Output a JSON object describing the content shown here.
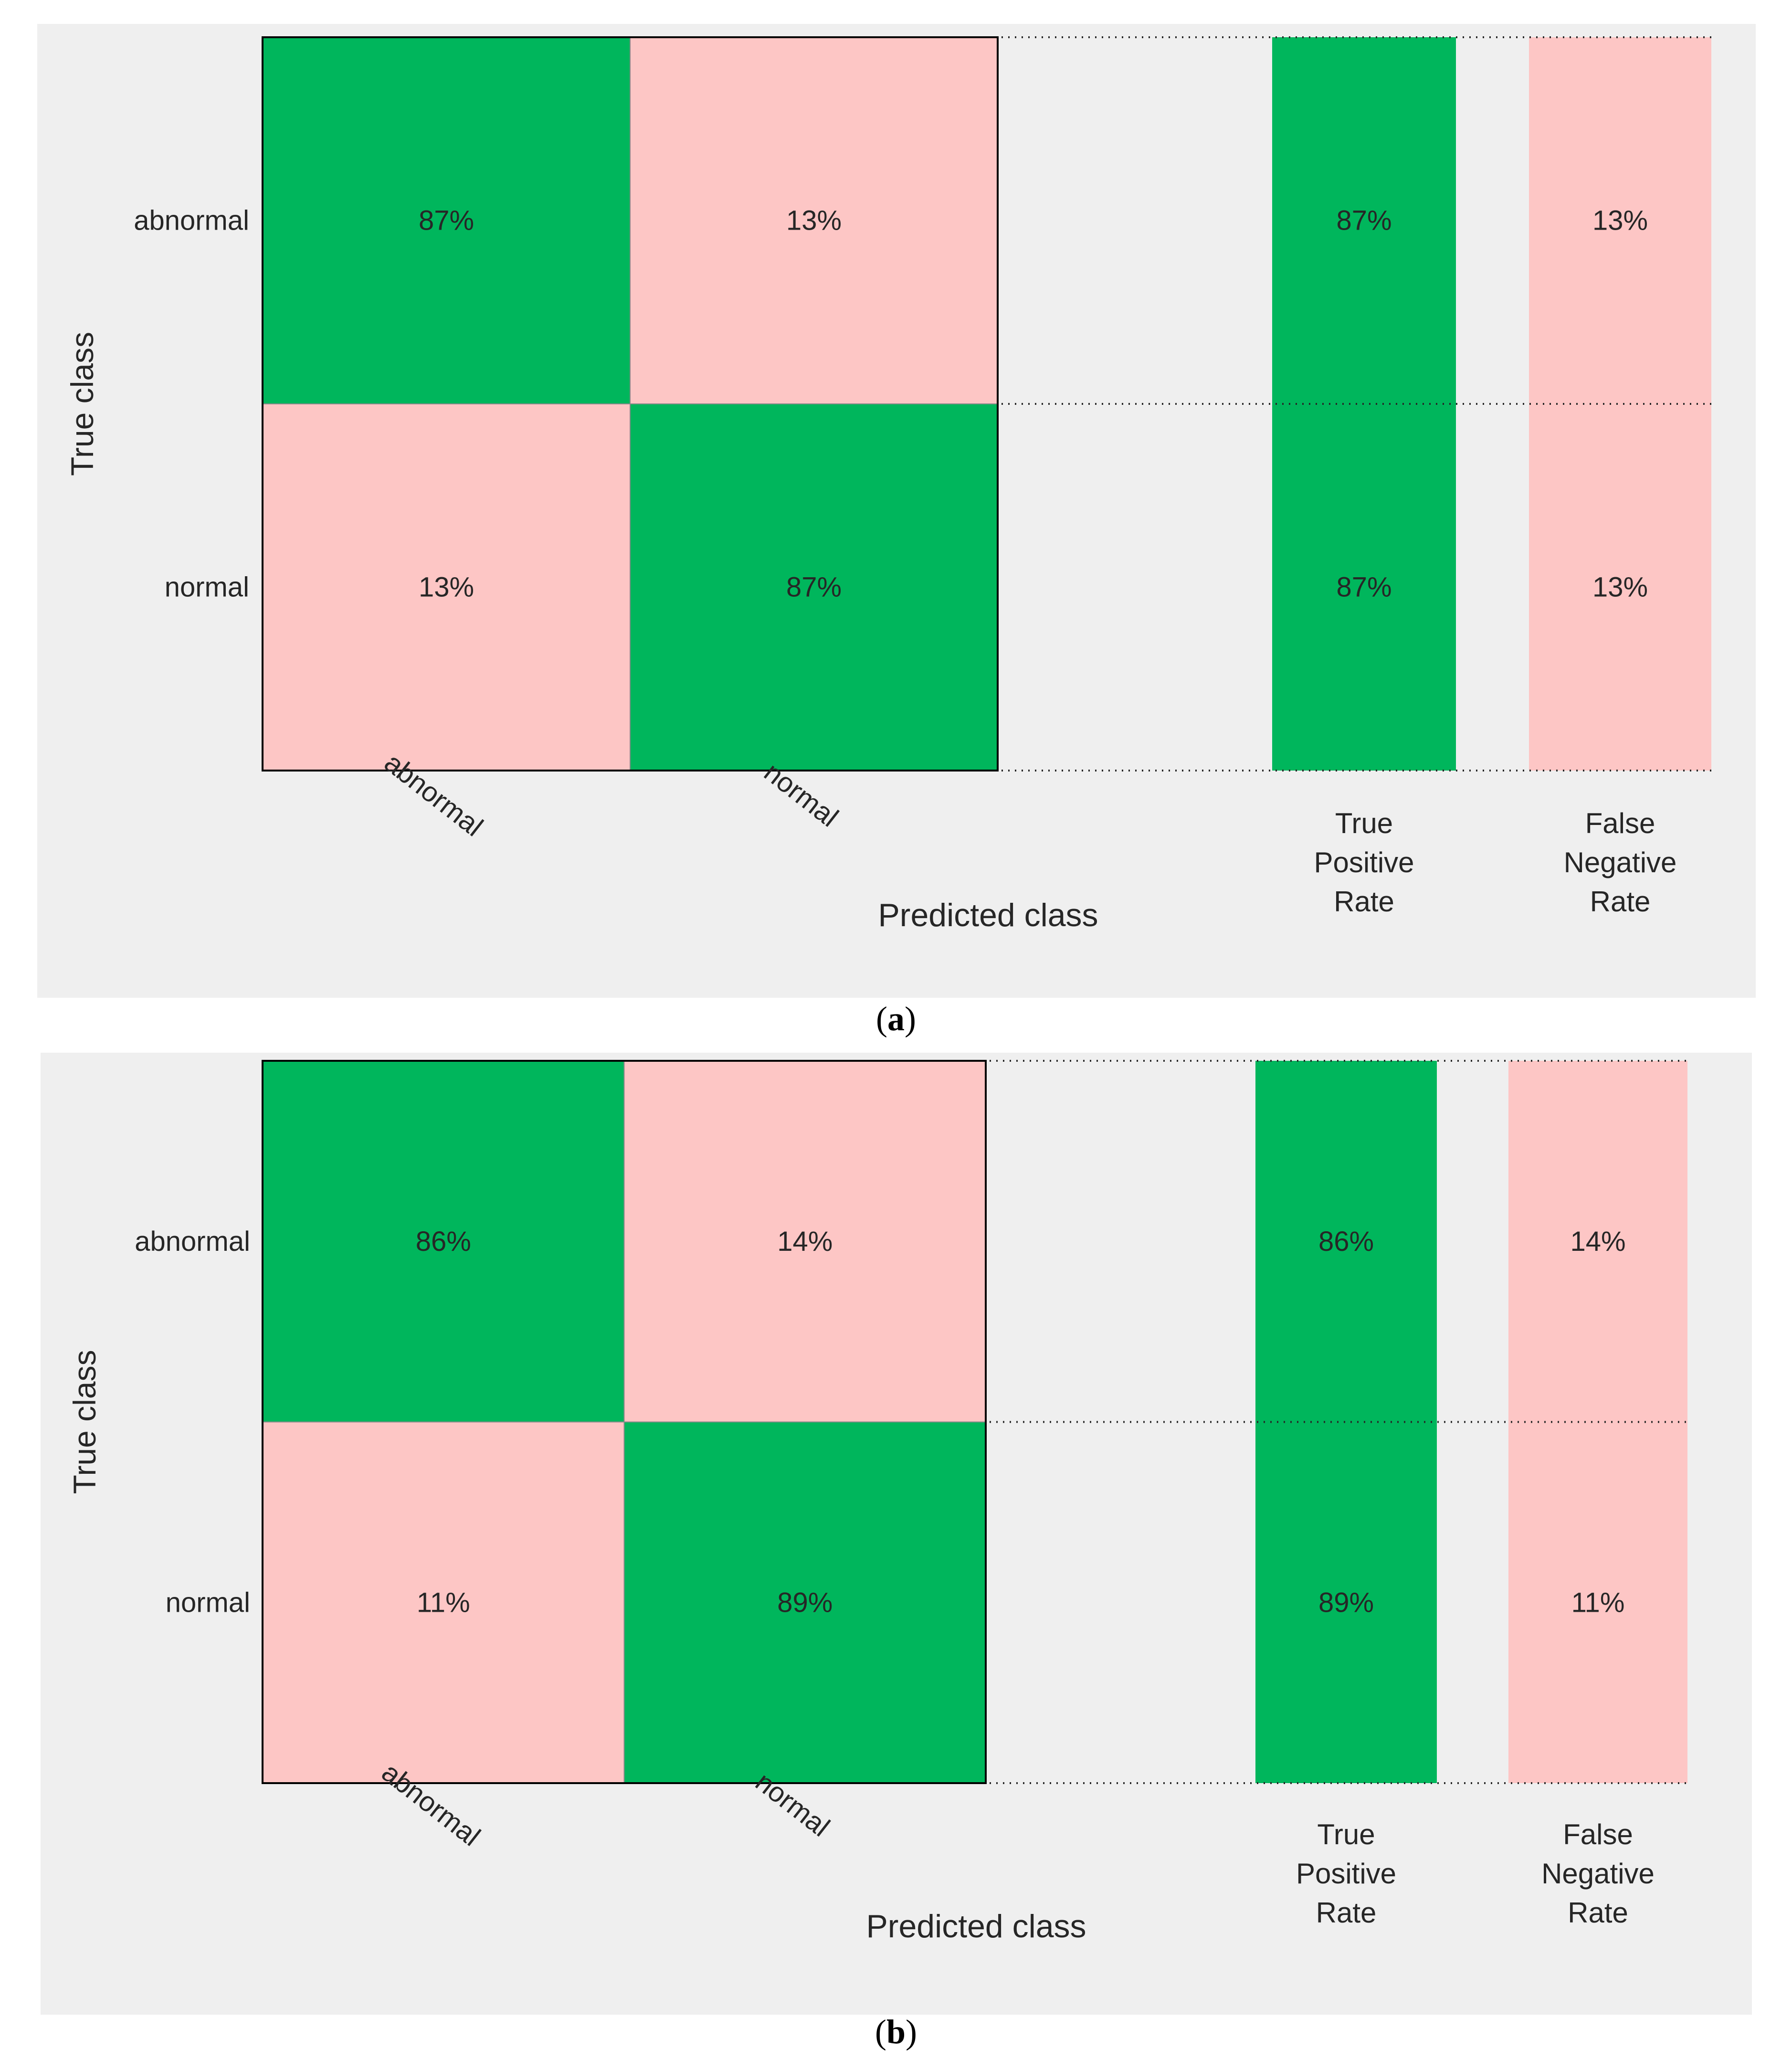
{
  "colors": {
    "panel_bg": "#efefef",
    "correct": "#00b65c",
    "incorrect": "#fdc6c5",
    "text": "#262626",
    "grid": "#262626"
  },
  "chart_data": [
    {
      "type": "heatmap",
      "caption": "a",
      "ylabel": "True class",
      "xlabel": "Predicted class",
      "classes": [
        "abnormal",
        "normal"
      ],
      "matrix": [
        [
          87,
          13
        ],
        [
          13,
          87
        ]
      ],
      "summary_columns": [
        {
          "label": [
            "True",
            "Positive",
            "Rate"
          ],
          "values": [
            87,
            87
          ],
          "kind": "correct"
        },
        {
          "label": [
            "False",
            "Negative",
            "Rate"
          ],
          "values": [
            13,
            13
          ],
          "kind": "incorrect"
        }
      ],
      "value_suffix": "%"
    },
    {
      "type": "heatmap",
      "caption": "b",
      "ylabel": "True class",
      "xlabel": "Predicted class",
      "classes": [
        "abnormal",
        "normal"
      ],
      "matrix": [
        [
          86,
          14
        ],
        [
          11,
          89
        ]
      ],
      "summary_columns": [
        {
          "label": [
            "True",
            "Positive",
            "Rate"
          ],
          "values": [
            86,
            89
          ],
          "kind": "correct"
        },
        {
          "label": [
            "False",
            "Negative",
            "Rate"
          ],
          "values": [
            14,
            11
          ],
          "kind": "incorrect"
        }
      ],
      "value_suffix": "%"
    }
  ]
}
